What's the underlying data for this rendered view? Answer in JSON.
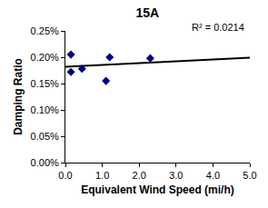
{
  "chart_data": {
    "type": "scatter",
    "title": "15A",
    "x_label": "Equivalent Wind Speed (mi/h)",
    "y_label": "Damping Ratio",
    "x": [
      0.15,
      0.15,
      0.45,
      1.1,
      1.2,
      2.3
    ],
    "values": [
      0.205,
      0.172,
      0.178,
      0.155,
      0.2,
      0.198
    ],
    "color": "#000080",
    "marker": "diamond",
    "trendline": {
      "x": [
        0,
        5
      ],
      "y": [
        0.182,
        0.199
      ],
      "color": "#000000",
      "line_style": "solid"
    },
    "annotations": [
      "R² = 0.0214"
    ],
    "xlim": [
      0,
      5
    ],
    "xticks": [
      {
        "value": 0,
        "label": "0.0"
      },
      {
        "value": 1,
        "label": "1.0"
      },
      {
        "value": 2,
        "label": "2.0"
      },
      {
        "value": 3,
        "label": "3.0"
      },
      {
        "value": 4,
        "label": "4.0"
      },
      {
        "value": 5,
        "label": "5.0"
      }
    ],
    "ylim": [
      0,
      0.25
    ],
    "yticks": [
      {
        "value": 0,
        "label": "0.00%"
      },
      {
        "value": 0.05,
        "label": "0.05%"
      },
      {
        "value": 0.1,
        "label": "0.10%"
      },
      {
        "value": 0.15,
        "label": "0.15%"
      },
      {
        "value": 0.2,
        "label": "0.20%"
      },
      {
        "value": 0.25,
        "label": "0.25%"
      }
    ],
    "grid": false
  }
}
